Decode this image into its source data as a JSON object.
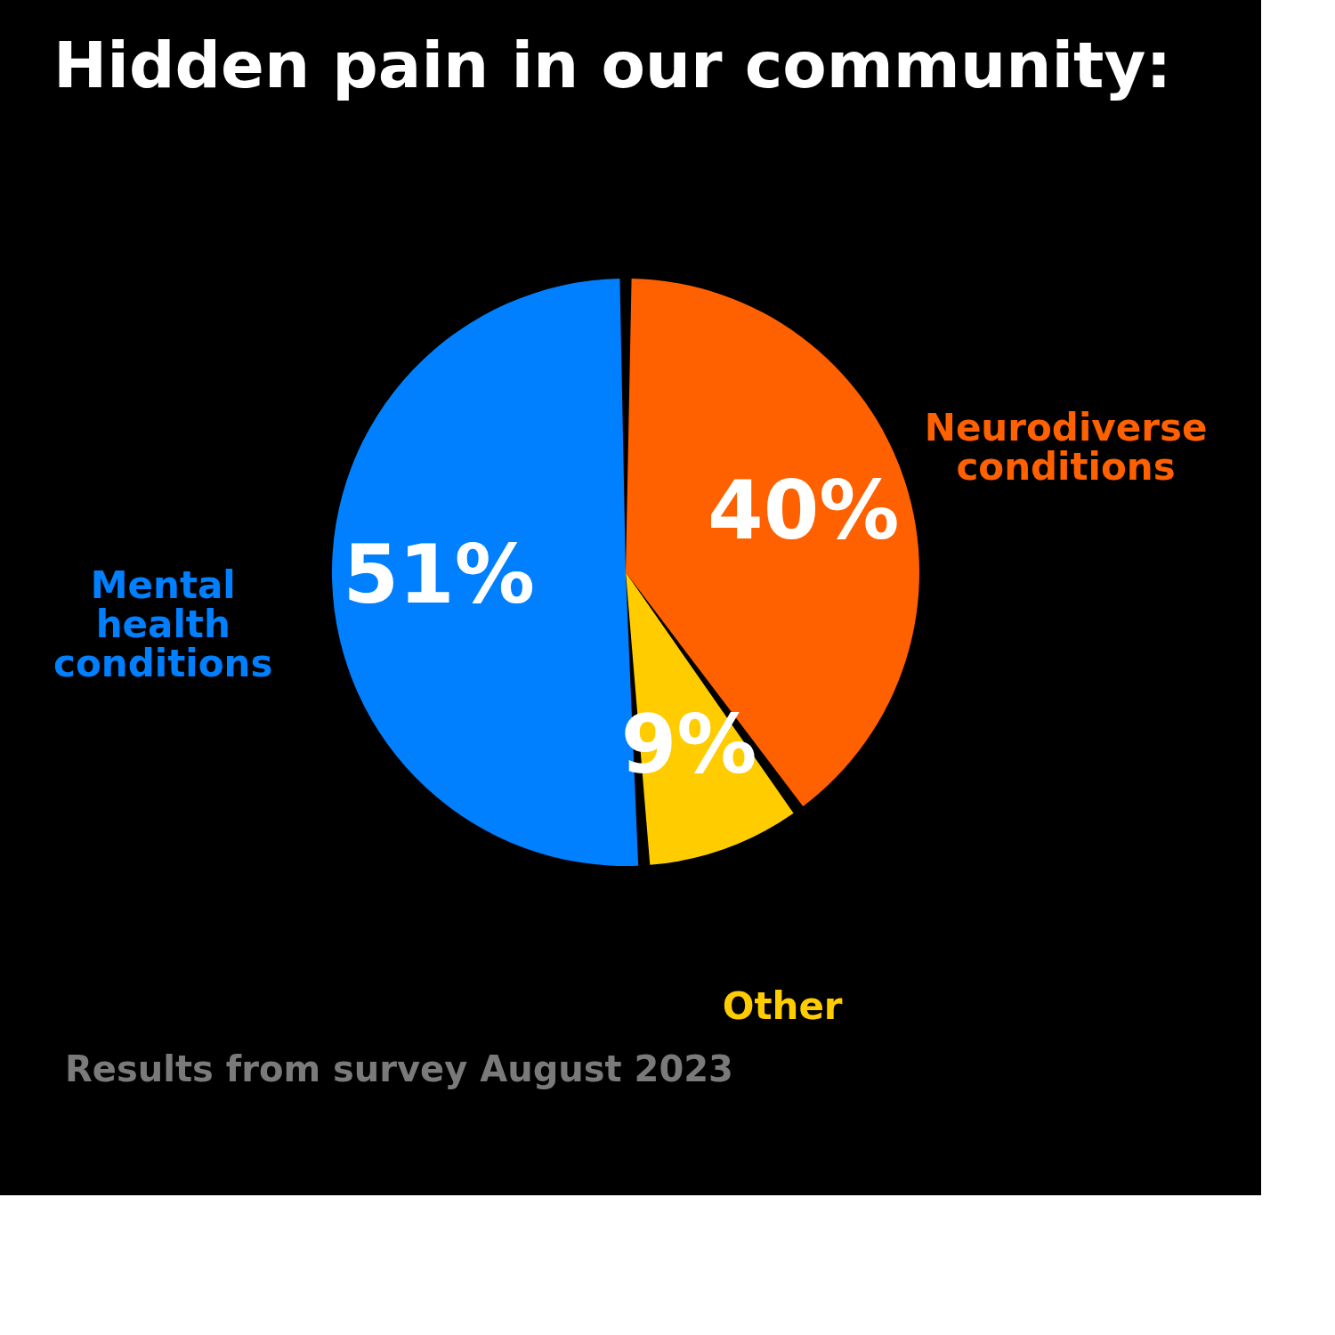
{
  "chart_data": {
    "type": "pie",
    "title": "Hidden pain in our community:",
    "categories": [
      "Neurodiverse conditions",
      "Other",
      "Mental health conditions"
    ],
    "values": [
      40,
      9,
      51
    ],
    "colors": [
      "#ff6000",
      "#ffcc00",
      "#0080ff"
    ],
    "value_labels": [
      "40%",
      "9%",
      "51%"
    ],
    "legend": false,
    "annotations": [
      "Results from survey August 2023"
    ]
  }
}
